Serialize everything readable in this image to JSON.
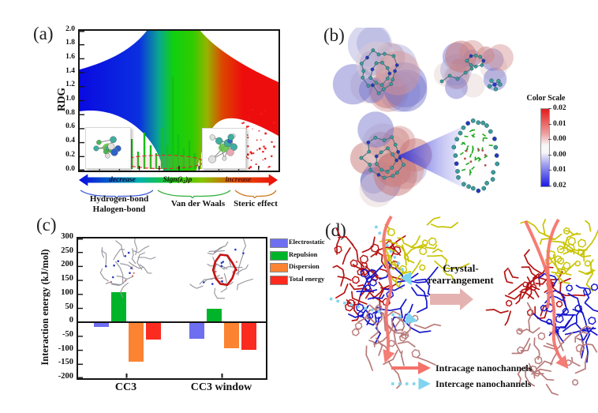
{
  "figure": {
    "panel_a": {
      "label": "(a)",
      "y_axis_title": "RDG",
      "y_ticks": [
        "2.0",
        "1.8",
        "1.6",
        "1.4",
        "1.2",
        "1.0",
        "0.8",
        "0.6",
        "0.4",
        "0.2",
        "0.0"
      ],
      "gradient_arrow": {
        "left": "decrease",
        "center": "Sign(λ₂)ρ",
        "right": "increase"
      },
      "category_labels": {
        "left_line1": "Hydrogen-bond",
        "left_line2": "Halogen-bond",
        "center": "Van der Waals",
        "right": "Steric effect"
      }
    },
    "panel_b": {
      "label": "(b)",
      "color_scale": {
        "title": "Color Scale",
        "ticks": [
          "0.02",
          "0.01",
          "0.00",
          "0.00",
          "0.01",
          "0.02"
        ],
        "top_color": "#e21b1b",
        "bottom_color": "#1b1be2"
      }
    },
    "panel_c": {
      "label": "(c)",
      "y_axis_title": "Interaction energy (kJ/mol)"
    },
    "panel_d": {
      "label": "(d)",
      "transition_label_line1": "Crystal-",
      "transition_label_line2": "rearrangement",
      "legend": [
        {
          "label": "Intracage nanochannels",
          "line_style": "solid",
          "color": "#f4726a"
        },
        {
          "label": "Intercage nanochannels",
          "line_style": "dotted",
          "color": "#7fd4f0"
        }
      ]
    }
  },
  "chart_data": [
    {
      "type": "scatter",
      "panel": "a",
      "title": "RDG vs Sign(λ₂)ρ noncovalent-interaction density plot",
      "xlabel": "Sign(λ₂)ρ",
      "ylabel": "RDG",
      "ylim": [
        0.0,
        2.0
      ],
      "y_tick_step": 0.2,
      "x_annotations": [
        "decrease",
        "increase"
      ],
      "regions": [
        {
          "name": "Hydrogen-bond / Halogen-bond",
          "color": "blue",
          "position": "left",
          "rdg_band_at_left_edge": [
            0.85,
            1.45
          ]
        },
        {
          "name": "Van der Waals",
          "color": "green",
          "position": "center",
          "feature": "low-RDG spikes near sign(λ₂)ρ ≈ 0"
        },
        {
          "name": "Steric effect",
          "color": "red",
          "position": "right",
          "rdg_band_at_right_edge": [
            0.5,
            1.27
          ]
        }
      ],
      "legend_position": "none",
      "grid": false
    },
    {
      "type": "bar",
      "panel": "c",
      "categories": [
        "CC3",
        "CC3 window"
      ],
      "series": [
        {
          "name": "Electrostatic",
          "color": "#6e6ef0",
          "values": [
            -17,
            -60
          ]
        },
        {
          "name": "Repulsion",
          "color": "#00b42a",
          "values": [
            107,
            50
          ]
        },
        {
          "name": "Dispersion",
          "color": "#fb8332",
          "values": [
            -140,
            -92
          ]
        },
        {
          "name": "Total energy",
          "color": "#fb2b20",
          "values": [
            -62,
            -98
          ]
        }
      ],
      "ylabel": "Interaction energy (kJ/mol)",
      "ylim": [
        -200,
        300
      ],
      "y_tick_step": 50,
      "legend_position": "right",
      "grid": false
    }
  ]
}
